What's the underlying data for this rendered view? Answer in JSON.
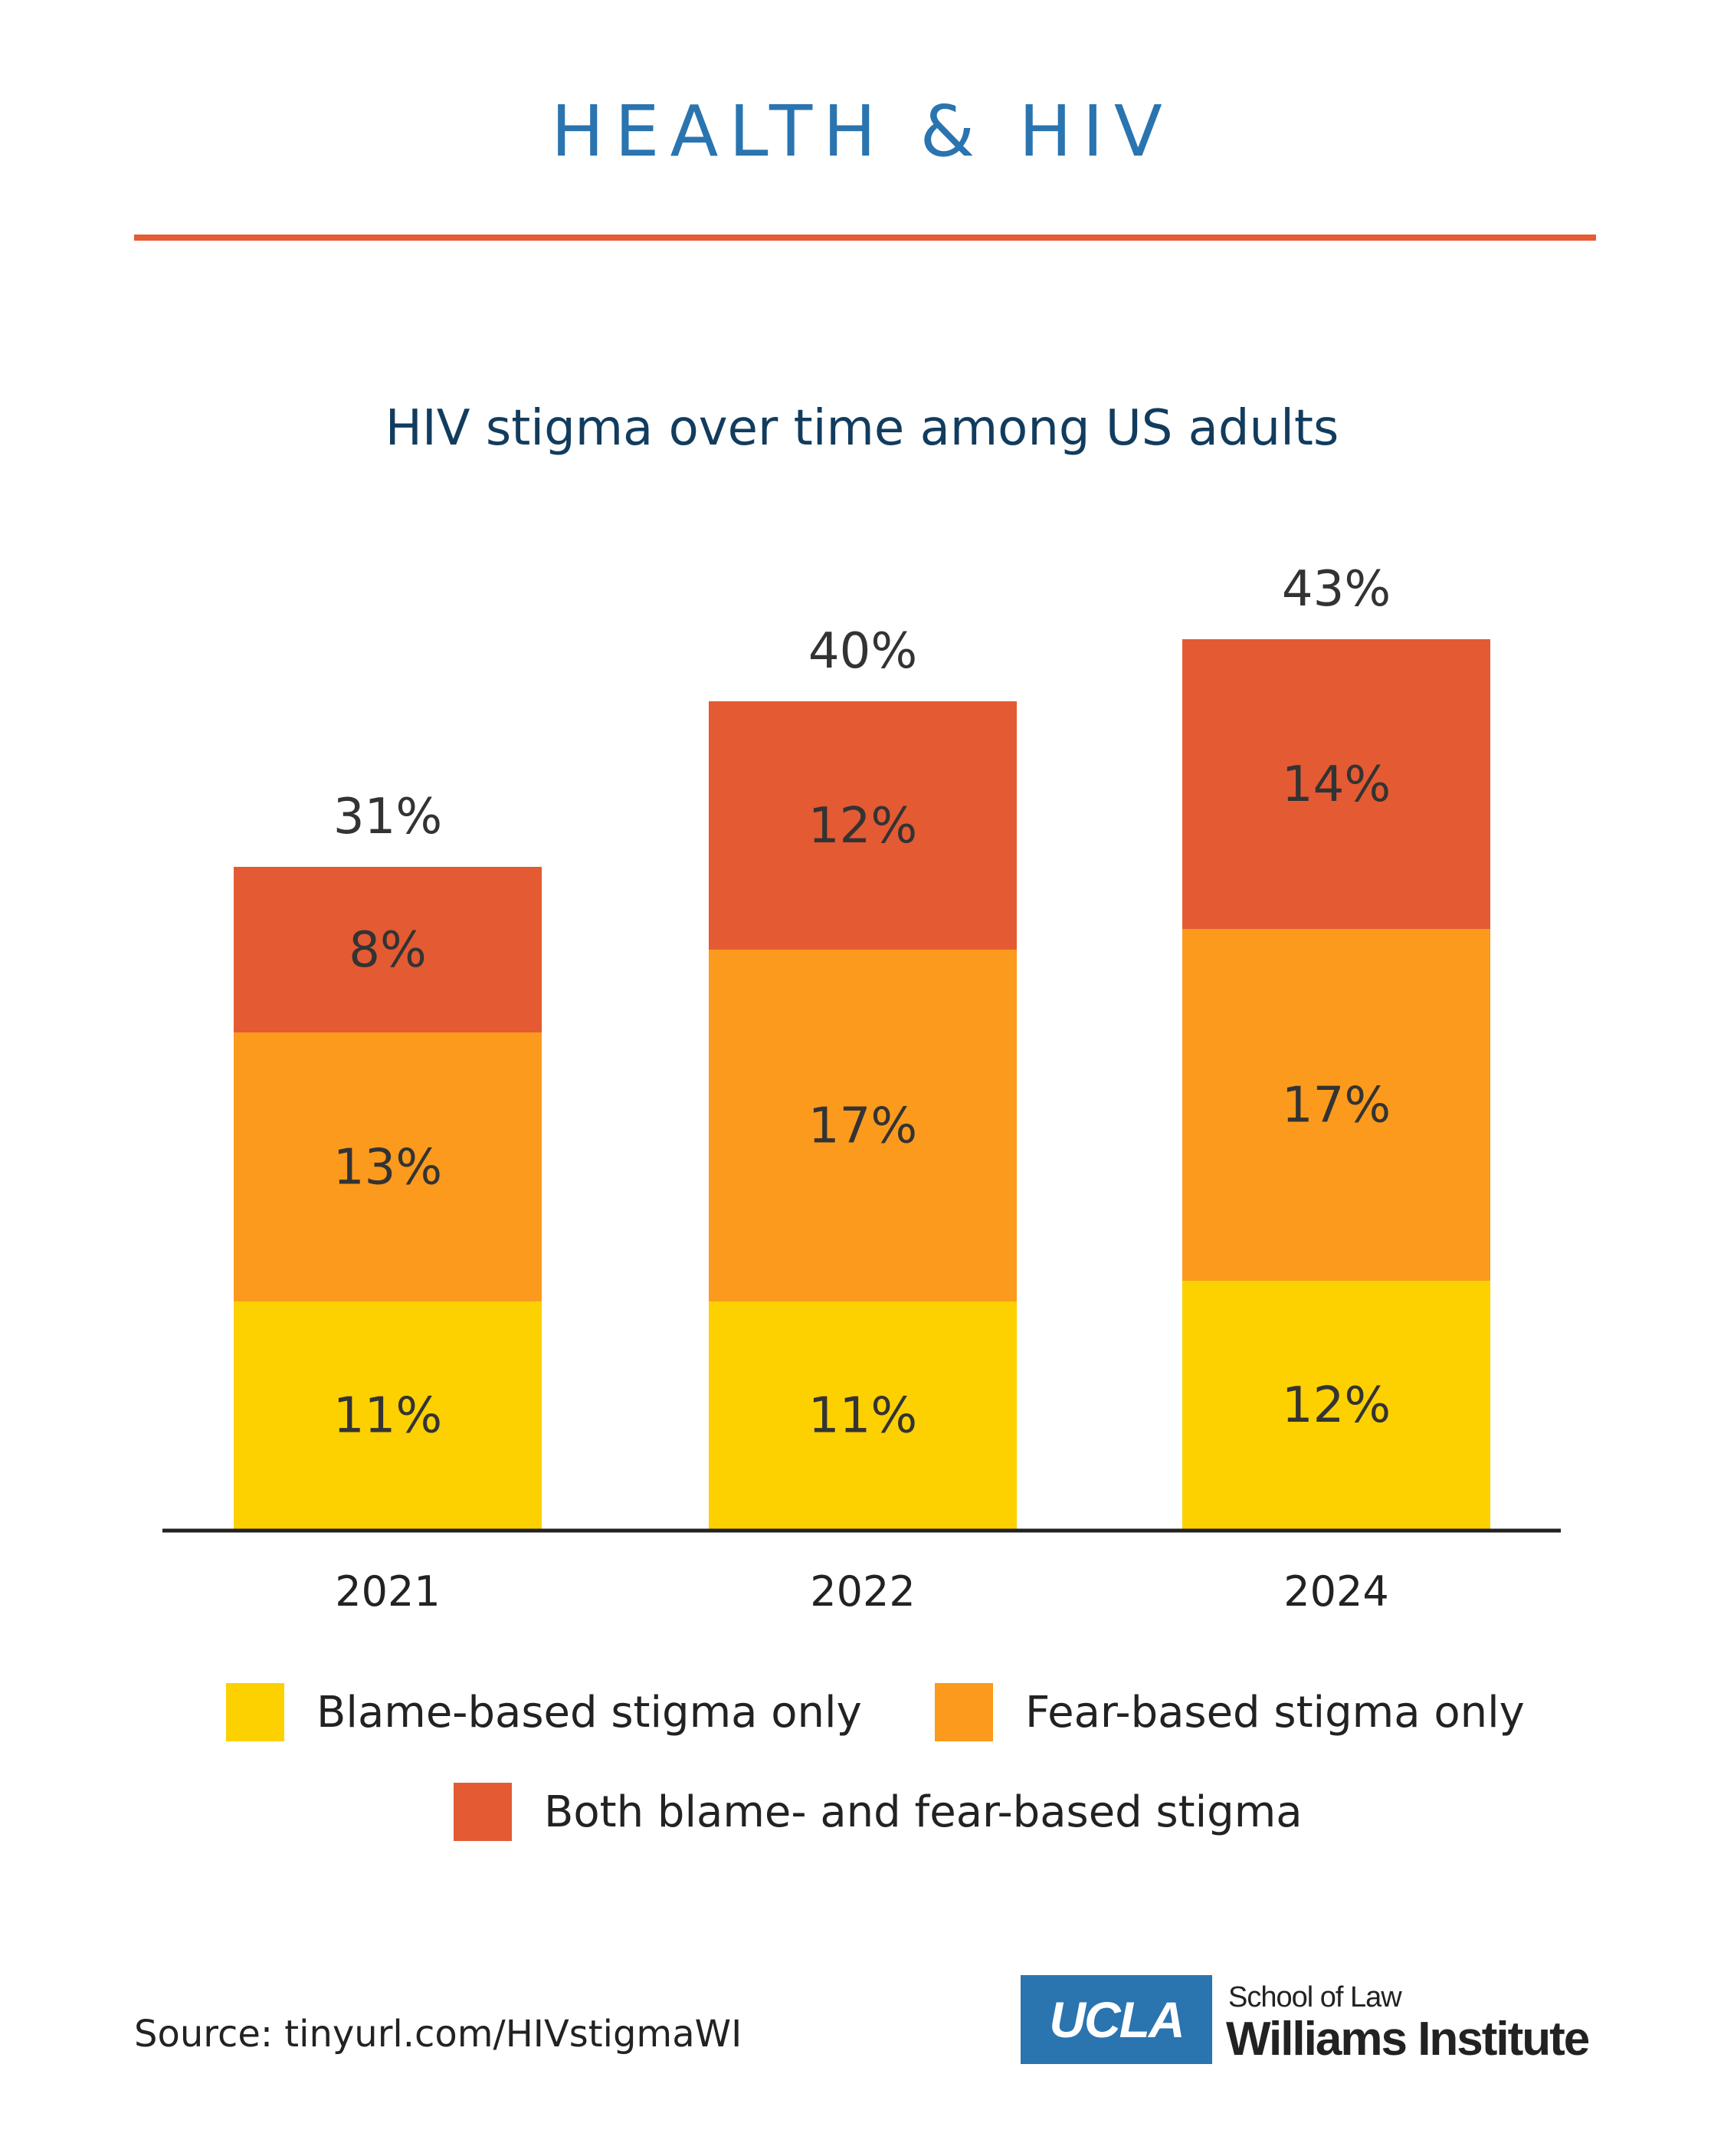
{
  "header": {
    "title": "HEALTH & HIV"
  },
  "colors": {
    "title_blue": "#2a74b0",
    "divider": "#e55b33",
    "subtitle": "#123c5e"
  },
  "chart_data": {
    "type": "bar",
    "stacked": true,
    "title": "HIV stigma over time among US adults",
    "xlabel": "",
    "ylabel": "",
    "categories": [
      "2021",
      "2022",
      "2024"
    ],
    "series": [
      {
        "name": "Blame-based stigma only",
        "color": "#fdd000",
        "values": [
          11,
          11,
          12
        ]
      },
      {
        "name": "Fear-based stigma only",
        "color": "#fb9a1c",
        "values": [
          13,
          17,
          17
        ]
      },
      {
        "name": "Both blame- and fear-based stigma",
        "color": "#e45a32",
        "values": [
          8,
          12,
          14
        ]
      }
    ],
    "totals": [
      31,
      40,
      43
    ],
    "unit": "%",
    "ylim": [
      0,
      45
    ],
    "grid": false,
    "legend_position": "bottom"
  },
  "footer": {
    "source": "Source: tinyurl.com/HIVstigmaWI",
    "logo_mark": "UCLA",
    "logo_school": "School of Law",
    "logo_institute": "Williams Institute"
  }
}
